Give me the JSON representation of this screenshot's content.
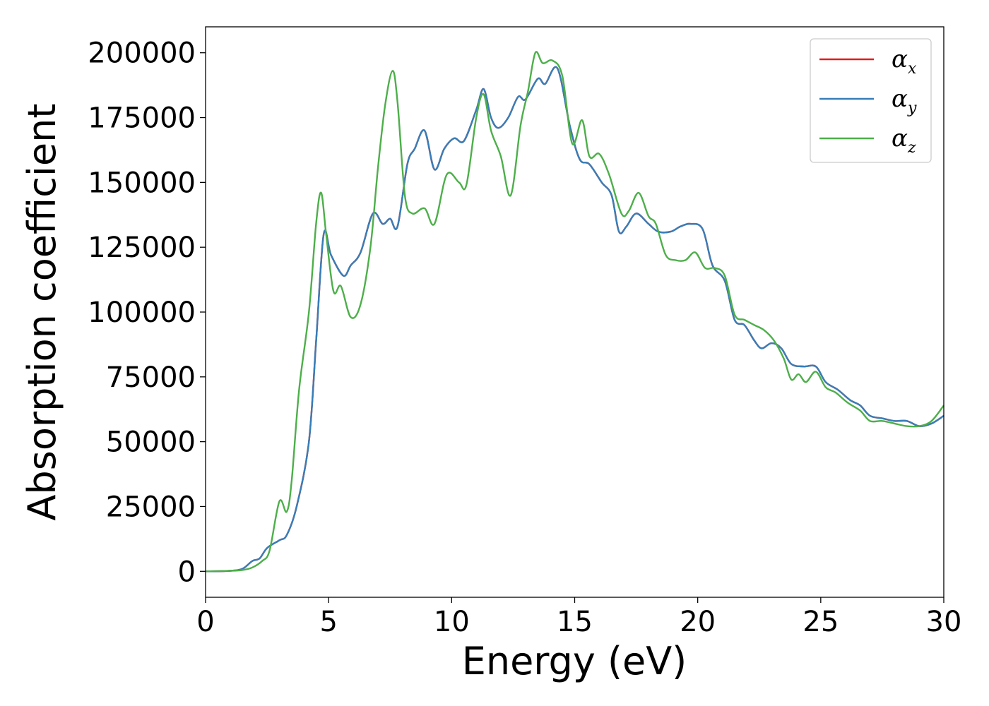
{
  "chart_data": {
    "type": "line",
    "xlabel": "Energy (eV)",
    "ylabel": "Absorption coefficient",
    "xlim": [
      0,
      30
    ],
    "ylim": [
      -10000,
      210000
    ],
    "xticks": [
      0,
      5,
      10,
      15,
      20,
      25,
      30
    ],
    "xtick_labels": [
      "0",
      "5",
      "10",
      "15",
      "20",
      "25",
      "30"
    ],
    "yticks": [
      0,
      25000,
      50000,
      75000,
      100000,
      125000,
      150000,
      175000,
      200000
    ],
    "ytick_labels": [
      "0",
      "25000",
      "50000",
      "75000",
      "100000",
      "125000",
      "150000",
      "175000",
      "200000"
    ],
    "grid": false,
    "legend_position": "top-right",
    "series": [
      {
        "name": "α_x",
        "legend_symbol": "α",
        "legend_subscript": "x",
        "color": "#e41a1c",
        "points": [
          [
            0,
            0
          ],
          [
            1,
            200
          ],
          [
            1.5,
            1000
          ],
          [
            1.9,
            4000
          ],
          [
            2.2,
            5000
          ],
          [
            2.5,
            9000
          ],
          [
            3,
            12000
          ],
          [
            3.3,
            14000
          ],
          [
            3.7,
            25000
          ],
          [
            4.2,
            50000
          ],
          [
            4.5,
            90000
          ],
          [
            4.8,
            130000
          ],
          [
            5.1,
            122000
          ],
          [
            5.6,
            114000
          ],
          [
            5.9,
            118000
          ],
          [
            6.3,
            123000
          ],
          [
            6.8,
            138000
          ],
          [
            7.2,
            134000
          ],
          [
            7.5,
            136000
          ],
          [
            7.8,
            133000
          ],
          [
            8.2,
            157000
          ],
          [
            8.5,
            163000
          ],
          [
            8.9,
            170000
          ],
          [
            9.3,
            155000
          ],
          [
            9.7,
            163000
          ],
          [
            10.1,
            167000
          ],
          [
            10.5,
            166000
          ],
          [
            11,
            178000
          ],
          [
            11.3,
            186000
          ],
          [
            11.6,
            175000
          ],
          [
            11.9,
            171000
          ],
          [
            12.3,
            175000
          ],
          [
            12.7,
            183000
          ],
          [
            13,
            182000
          ],
          [
            13.5,
            190000
          ],
          [
            13.8,
            188000
          ],
          [
            14.3,
            194000
          ],
          [
            14.8,
            172000
          ],
          [
            15.2,
            159000
          ],
          [
            15.6,
            157000
          ],
          [
            16.1,
            150000
          ],
          [
            16.5,
            145000
          ],
          [
            16.8,
            131000
          ],
          [
            17.1,
            133000
          ],
          [
            17.5,
            138000
          ],
          [
            18,
            134000
          ],
          [
            18.4,
            131000
          ],
          [
            18.9,
            131000
          ],
          [
            19.3,
            133000
          ],
          [
            19.7,
            134000
          ],
          [
            20.2,
            132000
          ],
          [
            20.6,
            118000
          ],
          [
            21.1,
            112000
          ],
          [
            21.5,
            97000
          ],
          [
            21.9,
            95000
          ],
          [
            22.3,
            89000
          ],
          [
            22.6,
            86000
          ],
          [
            23,
            88000
          ],
          [
            23.4,
            86000
          ],
          [
            23.8,
            80000
          ],
          [
            24.3,
            79000
          ],
          [
            24.8,
            79000
          ],
          [
            25.2,
            73000
          ],
          [
            25.7,
            70000
          ],
          [
            26.2,
            66000
          ],
          [
            26.6,
            64000
          ],
          [
            27,
            60000
          ],
          [
            27.5,
            59000
          ],
          [
            28,
            58000
          ],
          [
            28.5,
            58000
          ],
          [
            29,
            56000
          ],
          [
            29.5,
            57000
          ],
          [
            30,
            60000
          ]
        ]
      },
      {
        "name": "α_y",
        "legend_symbol": "α",
        "legend_subscript": "y",
        "color": "#377eb8",
        "points": [
          [
            0,
            0
          ],
          [
            1,
            200
          ],
          [
            1.5,
            1000
          ],
          [
            1.9,
            4000
          ],
          [
            2.2,
            5000
          ],
          [
            2.5,
            9000
          ],
          [
            3,
            12000
          ],
          [
            3.3,
            14000
          ],
          [
            3.7,
            25000
          ],
          [
            4.2,
            50000
          ],
          [
            4.5,
            90000
          ],
          [
            4.8,
            130000
          ],
          [
            5.1,
            122000
          ],
          [
            5.6,
            114000
          ],
          [
            5.9,
            118000
          ],
          [
            6.3,
            123000
          ],
          [
            6.8,
            138000
          ],
          [
            7.2,
            134000
          ],
          [
            7.5,
            136000
          ],
          [
            7.8,
            133000
          ],
          [
            8.2,
            157000
          ],
          [
            8.5,
            163000
          ],
          [
            8.9,
            170000
          ],
          [
            9.3,
            155000
          ],
          [
            9.7,
            163000
          ],
          [
            10.1,
            167000
          ],
          [
            10.5,
            166000
          ],
          [
            11,
            178000
          ],
          [
            11.3,
            186000
          ],
          [
            11.6,
            175000
          ],
          [
            11.9,
            171000
          ],
          [
            12.3,
            175000
          ],
          [
            12.7,
            183000
          ],
          [
            13,
            182000
          ],
          [
            13.5,
            190000
          ],
          [
            13.8,
            188000
          ],
          [
            14.3,
            194000
          ],
          [
            14.8,
            172000
          ],
          [
            15.2,
            159000
          ],
          [
            15.6,
            157000
          ],
          [
            16.1,
            150000
          ],
          [
            16.5,
            145000
          ],
          [
            16.8,
            131000
          ],
          [
            17.1,
            133000
          ],
          [
            17.5,
            138000
          ],
          [
            18,
            134000
          ],
          [
            18.4,
            131000
          ],
          [
            18.9,
            131000
          ],
          [
            19.3,
            133000
          ],
          [
            19.7,
            134000
          ],
          [
            20.2,
            132000
          ],
          [
            20.6,
            118000
          ],
          [
            21.1,
            112000
          ],
          [
            21.5,
            97000
          ],
          [
            21.9,
            95000
          ],
          [
            22.3,
            89000
          ],
          [
            22.6,
            86000
          ],
          [
            23,
            88000
          ],
          [
            23.4,
            86000
          ],
          [
            23.8,
            80000
          ],
          [
            24.3,
            79000
          ],
          [
            24.8,
            79000
          ],
          [
            25.2,
            73000
          ],
          [
            25.7,
            70000
          ],
          [
            26.2,
            66000
          ],
          [
            26.6,
            64000
          ],
          [
            27,
            60000
          ],
          [
            27.5,
            59000
          ],
          [
            28,
            58000
          ],
          [
            28.5,
            58000
          ],
          [
            29,
            56000
          ],
          [
            29.5,
            57000
          ],
          [
            30,
            60000
          ]
        ]
      },
      {
        "name": "α_z",
        "legend_symbol": "α",
        "legend_subscript": "z",
        "color": "#4daf4a",
        "points": [
          [
            0,
            0
          ],
          [
            1,
            200
          ],
          [
            1.5,
            500
          ],
          [
            1.9,
            1500
          ],
          [
            2.3,
            4000
          ],
          [
            2.6,
            8000
          ],
          [
            3,
            27000
          ],
          [
            3.3,
            23000
          ],
          [
            3.5,
            35000
          ],
          [
            3.8,
            70000
          ],
          [
            4.2,
            100000
          ],
          [
            4.5,
            135000
          ],
          [
            4.7,
            146000
          ],
          [
            4.9,
            130000
          ],
          [
            5.2,
            108000
          ],
          [
            5.5,
            110000
          ],
          [
            5.9,
            98000
          ],
          [
            6.3,
            103000
          ],
          [
            6.7,
            125000
          ],
          [
            7,
            155000
          ],
          [
            7.3,
            180000
          ],
          [
            7.6,
            193000
          ],
          [
            7.8,
            181000
          ],
          [
            8.1,
            145000
          ],
          [
            8.4,
            138000
          ],
          [
            8.9,
            140000
          ],
          [
            9.3,
            134000
          ],
          [
            9.8,
            153000
          ],
          [
            10.3,
            150000
          ],
          [
            10.6,
            149000
          ],
          [
            11,
            175000
          ],
          [
            11.3,
            184000
          ],
          [
            11.6,
            170000
          ],
          [
            12,
            160000
          ],
          [
            12.4,
            145000
          ],
          [
            12.8,
            172000
          ],
          [
            13.1,
            185000
          ],
          [
            13.4,
            200000
          ],
          [
            13.7,
            196000
          ],
          [
            14.1,
            197000
          ],
          [
            14.5,
            191000
          ],
          [
            14.9,
            165000
          ],
          [
            15.3,
            174000
          ],
          [
            15.6,
            160000
          ],
          [
            16,
            161000
          ],
          [
            16.4,
            153000
          ],
          [
            16.9,
            138000
          ],
          [
            17.2,
            139000
          ],
          [
            17.6,
            146000
          ],
          [
            18,
            137000
          ],
          [
            18.3,
            134000
          ],
          [
            18.7,
            122000
          ],
          [
            19.1,
            120000
          ],
          [
            19.5,
            120000
          ],
          [
            19.9,
            123000
          ],
          [
            20.3,
            117000
          ],
          [
            20.7,
            117000
          ],
          [
            21.1,
            114000
          ],
          [
            21.5,
            99000
          ],
          [
            21.9,
            97000
          ],
          [
            22.3,
            95000
          ],
          [
            22.7,
            93000
          ],
          [
            23.1,
            89000
          ],
          [
            23.5,
            82000
          ],
          [
            23.8,
            74000
          ],
          [
            24.1,
            76000
          ],
          [
            24.4,
            73000
          ],
          [
            24.8,
            77000
          ],
          [
            25.2,
            71000
          ],
          [
            25.6,
            69000
          ],
          [
            26.1,
            65000
          ],
          [
            26.6,
            62000
          ],
          [
            27,
            58000
          ],
          [
            27.5,
            58000
          ],
          [
            28,
            57000
          ],
          [
            28.5,
            56000
          ],
          [
            29,
            56000
          ],
          [
            29.5,
            58000
          ],
          [
            30,
            64000
          ]
        ]
      }
    ]
  }
}
